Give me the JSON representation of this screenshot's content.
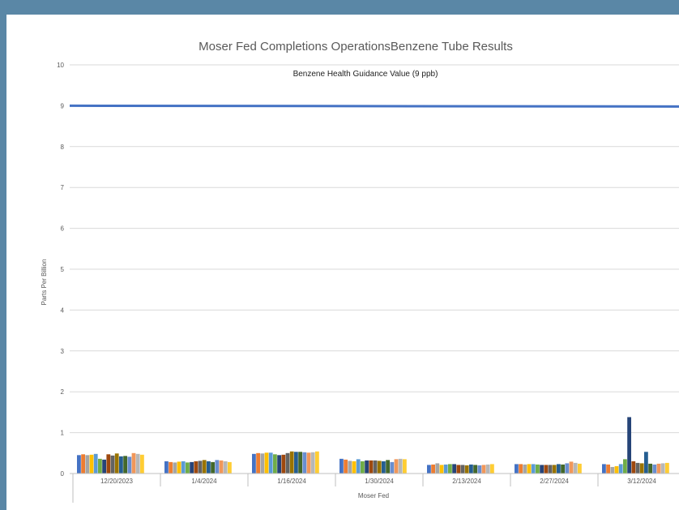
{
  "chart_data": {
    "type": "bar",
    "title": "Moser Fed Completions OperationsBenzene Tube Results",
    "xlabel": "Moser Fed",
    "ylabel": "Parts Per Billion",
    "ylim": [
      0,
      10
    ],
    "yticks": [
      0,
      1,
      2,
      3,
      4,
      5,
      6,
      7,
      8,
      9,
      10
    ],
    "grid": true,
    "categories": [
      "12/20/2023",
      "1/4/2024",
      "1/16/2024",
      "1/30/2024",
      "2/13/2024",
      "2/27/2024",
      "3/12/2024"
    ],
    "series_colors": [
      "#4472c4",
      "#ed7d31",
      "#a5a5a5",
      "#ffc000",
      "#5b9bd5",
      "#70ad47",
      "#264478",
      "#9e480e",
      "#636363",
      "#997300",
      "#255e91",
      "#43682b",
      "#698ed0",
      "#f1975a",
      "#b7b7b7",
      "#ffcd33"
    ],
    "category_values": [
      [
        0.45,
        0.47,
        0.45,
        0.46,
        0.48,
        0.36,
        0.34,
        0.47,
        0.44,
        0.49,
        0.42,
        0.43,
        0.41,
        0.5,
        0.48,
        0.46
      ],
      [
        0.3,
        0.28,
        0.27,
        0.29,
        0.3,
        0.27,
        0.28,
        0.3,
        0.31,
        0.33,
        0.3,
        0.28,
        0.33,
        0.32,
        0.3,
        0.28
      ],
      [
        0.48,
        0.5,
        0.49,
        0.51,
        0.51,
        0.47,
        0.45,
        0.46,
        0.5,
        0.54,
        0.53,
        0.53,
        0.52,
        0.51,
        0.52,
        0.54
      ],
      [
        0.36,
        0.34,
        0.31,
        0.3,
        0.35,
        0.3,
        0.32,
        0.32,
        0.32,
        0.31,
        0.3,
        0.33,
        0.28,
        0.35,
        0.36,
        0.35
      ],
      [
        0.21,
        0.22,
        0.25,
        0.21,
        0.22,
        0.23,
        0.23,
        0.21,
        0.21,
        0.2,
        0.22,
        0.21,
        0.2,
        0.21,
        0.22,
        0.23
      ],
      [
        0.23,
        0.23,
        0.22,
        0.23,
        0.23,
        0.22,
        0.21,
        0.21,
        0.21,
        0.21,
        0.23,
        0.22,
        0.25,
        0.29,
        0.26,
        0.24
      ],
      [
        0.23,
        0.22,
        0.16,
        0.18,
        0.23,
        0.35,
        1.38,
        0.3,
        0.26,
        0.25,
        0.53,
        0.24,
        0.22,
        0.24,
        0.25,
        0.26
      ]
    ],
    "reference_line": {
      "value": 9,
      "label": "Benzene Health Guidance Value (9 ppb)",
      "color": "#4472c4"
    }
  }
}
